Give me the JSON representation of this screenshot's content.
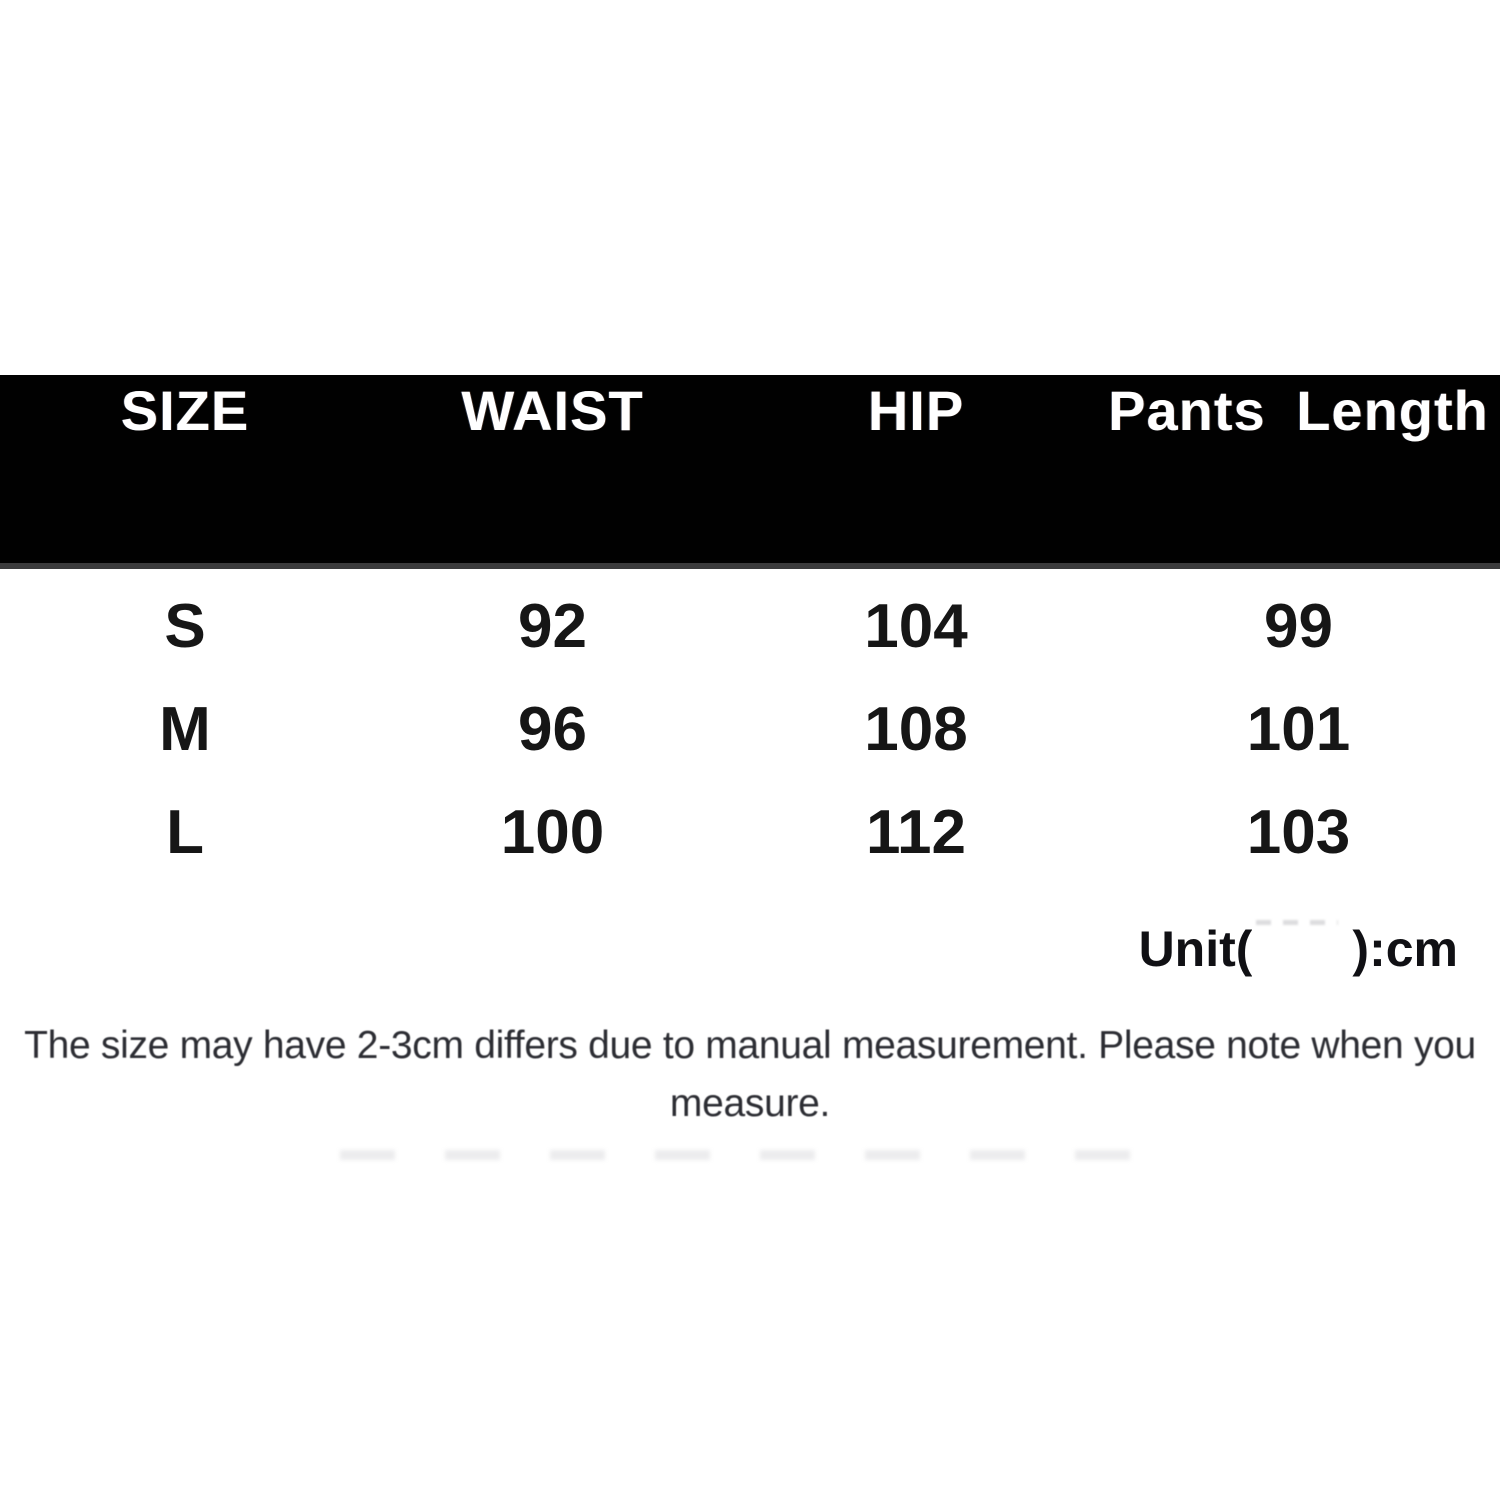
{
  "table": {
    "headers": [
      "SIZE",
      "WAIST",
      "HIP",
      "Pants Length"
    ],
    "rows": [
      {
        "size": "S",
        "waist": "92",
        "hip": "104",
        "pants_length": "99"
      },
      {
        "size": "M",
        "waist": "96",
        "hip": "108",
        "pants_length": "101"
      },
      {
        "size": "L",
        "waist": "100",
        "hip": "112",
        "pants_length": "103"
      }
    ]
  },
  "unit": {
    "prefix": "Unit(",
    "suffix": "):cm"
  },
  "note": {
    "line1": "The size may have 2-3cm differs due to manual measurement. Please note when you",
    "line2": "measure."
  },
  "colors": {
    "band": "#010101",
    "band_edge": "#3b3b3c",
    "header_text": "#ffffff",
    "body_text": "#161616",
    "note_text": "#2c2d33",
    "background": "#ffffff"
  },
  "chart_data": {
    "type": "table",
    "title": "Pants size chart",
    "columns": [
      "SIZE",
      "WAIST",
      "HIP",
      "Pants Length"
    ],
    "rows": [
      [
        "S",
        92,
        104,
        99
      ],
      [
        "M",
        96,
        108,
        101
      ],
      [
        "L",
        100,
        112,
        103
      ]
    ],
    "unit": "cm",
    "footnote": "The size may have 2-3cm differs due to manual measurement. Please note when you measure."
  }
}
